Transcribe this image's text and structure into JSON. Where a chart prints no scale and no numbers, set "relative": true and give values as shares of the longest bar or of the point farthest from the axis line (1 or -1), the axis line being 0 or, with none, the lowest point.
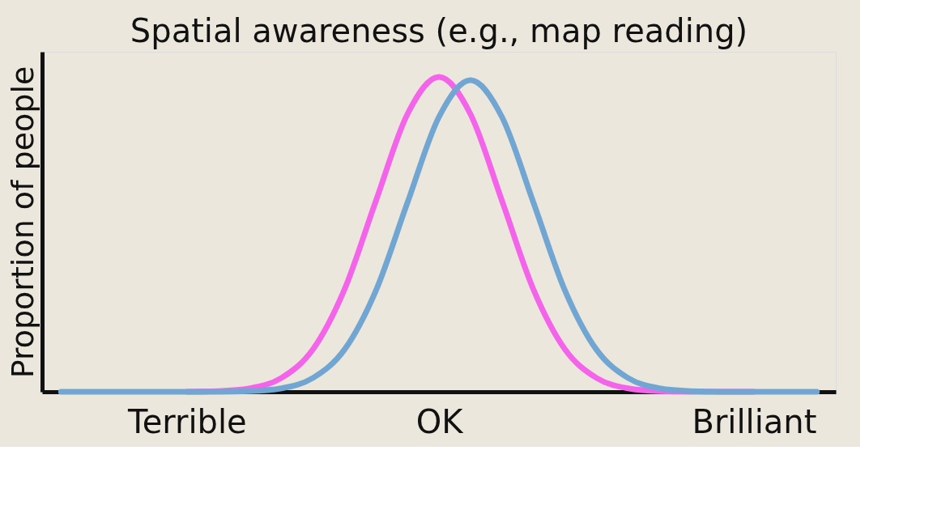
{
  "chart_data": {
    "type": "line",
    "title": "Spatial awareness (e.g., map reading)",
    "ylabel": "Proportion of people",
    "relative": true,
    "categories": [
      null,
      null,
      null,
      null,
      "Terrible",
      null,
      null,
      null,
      null,
      null,
      null,
      null,
      "OK",
      null,
      null,
      null,
      null,
      null,
      null,
      null,
      null,
      null,
      "Brilliant",
      null,
      null
    ],
    "line_style": "solid",
    "series": [
      {
        "color": "#f464ea",
        "values": [
          null,
          null,
          null,
          null,
          0,
          0.002,
          0.011,
          0.044,
          0.135,
          0.325,
          0.607,
          0.882,
          1,
          0.882,
          0.607,
          0.325,
          0.135,
          0.044,
          0.011,
          0.002,
          0,
          0,
          0,
          null,
          null
        ]
      },
      {
        "color": "#72a6d2",
        "values": [
          0,
          0,
          0,
          0,
          0,
          0,
          0.002,
          0.011,
          0.044,
          0.134,
          0.322,
          0.601,
          0.873,
          0.99,
          0.873,
          0.601,
          0.322,
          0.134,
          0.044,
          0.011,
          0.002,
          0,
          0,
          0,
          0
        ]
      }
    ]
  }
}
